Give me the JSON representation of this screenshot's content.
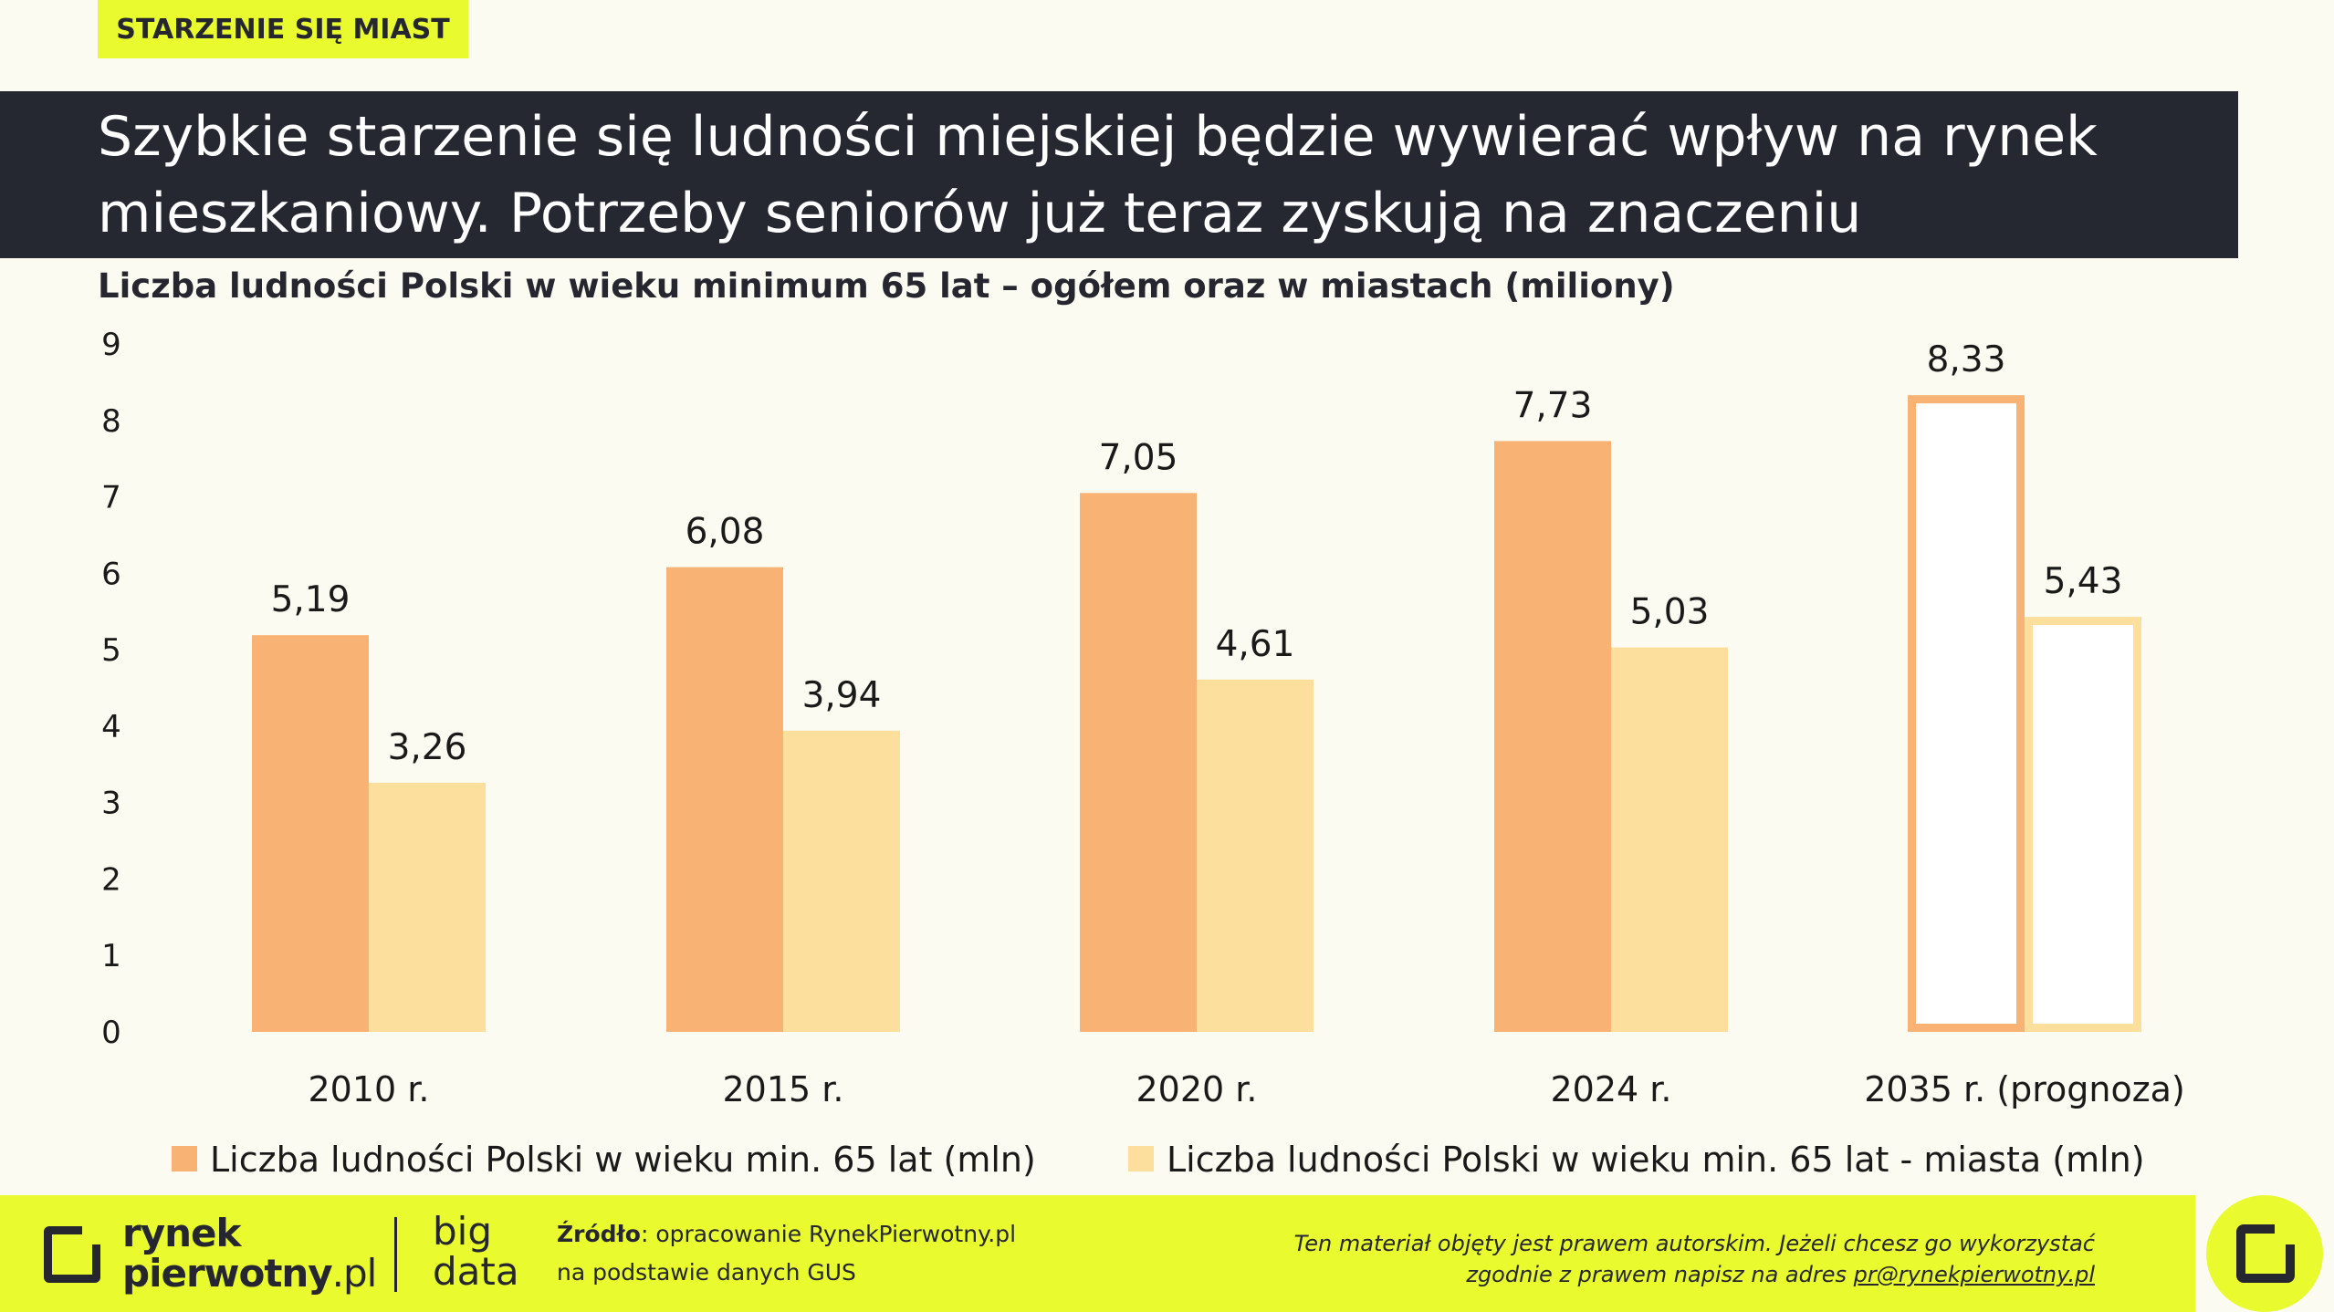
{
  "tag": "STARZENIE SIĘ MIAST",
  "headline": {
    "line1": "Szybkie starzenie się ludności miejskiej będzie wywierać wpływ na rynek",
    "line2": "mieszkaniowy. Potrzeby seniorów już teraz zyskują na znaczeniu"
  },
  "chart_data": {
    "type": "bar",
    "title": "Liczba ludności Polski w wieku minimum 65 lat – ogółem oraz w miastach (miliony)",
    "categories": [
      "2010 r.",
      "2015 r.",
      "2020 r.",
      "2024 r.",
      "2035 r. (prognoza)"
    ],
    "series": [
      {
        "name": "Liczba ludności Polski w wieku min. 65 lat (mln)",
        "values": [
          5.19,
          6.08,
          7.05,
          7.73,
          8.33
        ],
        "labels": [
          "5,19",
          "6,08",
          "7,05",
          "7,73",
          "8,33"
        ],
        "color": "#f8b273"
      },
      {
        "name": "Liczba ludności Polski w wieku min. 65 lat - miasta (mln)",
        "values": [
          3.26,
          3.94,
          4.61,
          5.03,
          5.43
        ],
        "labels": [
          "3,26",
          "3,94",
          "4,61",
          "5,03",
          "5,43"
        ],
        "color": "#fddf9d"
      }
    ],
    "forecast_categories": [
      "2035 r. (prognoza)"
    ],
    "ylim": [
      0,
      9
    ],
    "yticks": [
      "0",
      "1",
      "2",
      "3",
      "4",
      "5",
      "6",
      "7",
      "8",
      "9"
    ],
    "grid": false,
    "legend": "bottom"
  },
  "footer": {
    "logo_line1": "rynek",
    "logo_line2": "pierwotny",
    "logo_suffix": ".pl",
    "bigdata_line1": "big",
    "bigdata_line2": "data",
    "source_label": "Źródło",
    "source_line1": ": opracowanie RynekPierwotny.pl",
    "source_line2": "na podstawie danych GUS",
    "copyright_line1": "Ten materiał objęty jest prawem autorskim. Jeżeli chcesz go wykorzystać",
    "copyright_line2": "zgodnie z prawem napisz na adres ",
    "copyright_email": "pr@rynekpierwotny.pl"
  }
}
